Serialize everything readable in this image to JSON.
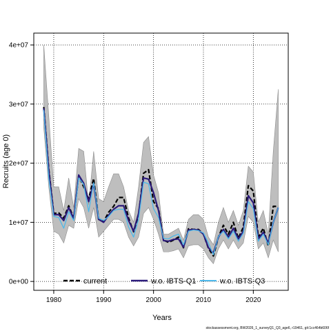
{
  "chart_data": {
    "type": "line",
    "title": "",
    "xlabel": "Years",
    "ylabel": "Recruits (age 0)",
    "xlim": [
      1976,
      2027
    ],
    "ylim": [
      -1500000,
      42000000
    ],
    "grid": true,
    "legend_position": "bottom",
    "x_ticks": [
      1980,
      1990,
      2000,
      2010,
      2020
    ],
    "x_tick_labels": [
      "1980",
      "1990",
      "2000",
      "2010",
      "2020"
    ],
    "y_ticks": [
      0,
      10000000,
      20000000,
      30000000,
      40000000
    ],
    "y_tick_labels": [
      "0e+00",
      "1e+07",
      "2e+07",
      "3e+07",
      "4e+07"
    ],
    "x": [
      1978,
      1979,
      1980,
      1981,
      1982,
      1983,
      1984,
      1985,
      1986,
      1987,
      1988,
      1989,
      1990,
      1991,
      1992,
      1993,
      1994,
      1995,
      1996,
      1997,
      1998,
      1999,
      2000,
      2001,
      2002,
      2003,
      2004,
      2005,
      2006,
      2007,
      2008,
      2009,
      2010,
      2011,
      2012,
      2013,
      2014,
      2015,
      2016,
      2017,
      2018,
      2019,
      2020,
      2021,
      2022,
      2023,
      2024,
      2025
    ],
    "band": {
      "upper": [
        40000000,
        28000000,
        16000000,
        16000000,
        12000000,
        17500000,
        12500000,
        22500000,
        22000000,
        13000000,
        22000000,
        14000000,
        13500000,
        16000000,
        18200000,
        18200000,
        16000000,
        12000000,
        10000000,
        16000000,
        23500000,
        24500000,
        18000000,
        15000000,
        8000000,
        8000000,
        8500000,
        9000000,
        7000000,
        10500000,
        11300000,
        11300000,
        10500000,
        7500000,
        6200000,
        10000000,
        12500000,
        10000000,
        12000000,
        9500000,
        12000000,
        19500000,
        18500000,
        10000000,
        12000000,
        8000000,
        22000000,
        32500000
      ],
      "lower": [
        26000000,
        16000000,
        8500000,
        8000000,
        6500000,
        9500000,
        9000000,
        14000000,
        12500000,
        9000000,
        12500000,
        7500000,
        8500000,
        9500000,
        10500000,
        10500000,
        10000000,
        7500000,
        6000000,
        7500000,
        11500000,
        12500000,
        10500000,
        8000000,
        5000000,
        5000000,
        5200000,
        5500000,
        4000000,
        6000000,
        6200000,
        6200000,
        5500000,
        4000000,
        3000000,
        5500000,
        7000000,
        5500000,
        7000000,
        5500000,
        6500000,
        11000000,
        10000000,
        5500000,
        6500000,
        4000000,
        7000000,
        5000000
      ],
      "color": "#bebebe"
    },
    "series": [
      {
        "name": "current",
        "color": "#000000",
        "dash": true,
        "values": [
          29500000,
          19000000,
          11500000,
          11600000,
          10700000,
          12800000,
          10700000,
          17900000,
          16000000,
          14000000,
          17400000,
          10500000,
          10100000,
          11700000,
          12700000,
          14200000,
          14200000,
          10700000,
          8400000,
          11200000,
          18300000,
          18900000,
          13500000,
          12300000,
          7000000,
          6600000,
          7000000,
          7500000,
          5700000,
          8900000,
          8800000,
          8800000,
          8000000,
          5600000,
          4300000,
          7500000,
          9500000,
          8000000,
          10000000,
          7300000,
          9200000,
          16200000,
          15300000,
          7500000,
          9000000,
          6000000,
          12700000,
          12700000
        ]
      },
      {
        "name": "w.o. IBTS-Q1",
        "color": "#2b1a7a",
        "dash": false,
        "values": [
          29300000,
          18700000,
          11300000,
          11300000,
          10300000,
          12500000,
          10600000,
          18000000,
          16600000,
          13500000,
          16500000,
          10500000,
          10000000,
          11200000,
          12200000,
          12800000,
          12800000,
          10300000,
          8500000,
          11500000,
          17500000,
          17300000,
          15000000,
          12000000,
          6900000,
          6800000,
          7100000,
          7200000,
          5800000,
          8700000,
          8800000,
          8700000,
          8000000,
          5700000,
          4800000,
          7500000,
          8800000,
          7500000,
          9000000,
          7200000,
          8500000,
          14500000,
          13300000,
          7200000,
          8300000,
          6500000,
          10000000,
          12500000
        ]
      },
      {
        "name": "w.o. IBTS-Q3",
        "color": "#4db8ea",
        "dash": false,
        "values": [
          29000000,
          17500000,
          11000000,
          10800000,
          9000000,
          11800000,
          10300000,
          17500000,
          16400000,
          11800000,
          16700000,
          10700000,
          10300000,
          11000000,
          12000000,
          12200000,
          12200000,
          9200000,
          7500000,
          10500000,
          16800000,
          16500000,
          12300000,
          10800000,
          7300000,
          7200000,
          7700000,
          8000000,
          6200000,
          8500000,
          8700000,
          8600000,
          8200000,
          6500000,
          4500000,
          7600000,
          8500000,
          7200000,
          8500000,
          6800000,
          8200000,
          13500000,
          12300000,
          6800000,
          8000000,
          6200000,
          10000000,
          12500000
        ]
      }
    ]
  },
  "footer": "stockassessment.org, BW2026_1_surveyQ1_Q3_age6, r19461, git:1cc464b606f"
}
